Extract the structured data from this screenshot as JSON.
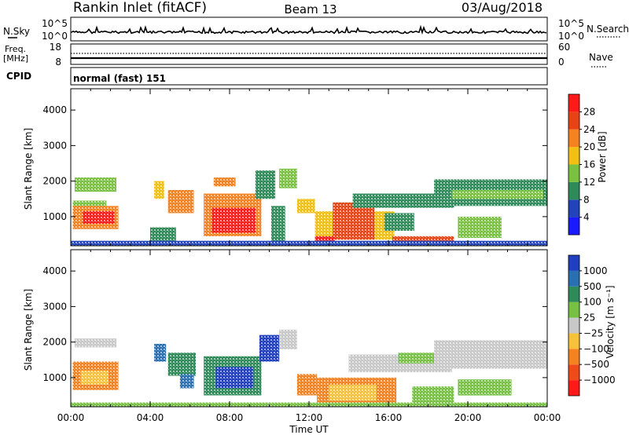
{
  "header": {
    "station": "Rankin Inlet (fitACF)",
    "beam": "Beam 13",
    "date": "03/Aug/2018"
  },
  "summary_panels": {
    "nsky_label": "N.Sky",
    "nsky_ticks": [
      "10^5",
      "10^0"
    ],
    "nsearch_label": "N.Search",
    "nsearch_ticks": [
      "10^5",
      "10^0"
    ],
    "freq_label": "Freq.",
    "freq_unit": "[MHz]",
    "freq_ticks": [
      "18",
      "8"
    ],
    "nave_label": "Nave",
    "nave_ticks": [
      "60",
      "0"
    ],
    "cpid_label": "CPID",
    "cpid_text": "normal (fast) 151"
  },
  "chart_data": [
    {
      "type": "heatmap",
      "name": "power",
      "ylabel": "Slant Range [km]",
      "xlabel": "Time UT",
      "xlim": [
        0,
        24
      ],
      "ylim": [
        180,
        4600
      ],
      "yticks": [
        1000,
        2000,
        3000,
        4000
      ],
      "xticks_labels": [
        "00:00",
        "04:00",
        "08:00",
        "12:00",
        "16:00",
        "20:00",
        "00:00"
      ],
      "colorbar": {
        "label": "Power [dB]",
        "ticks": [
          "4",
          "8",
          "12",
          "16",
          "20",
          "24",
          "28"
        ],
        "colors": [
          "#1a1aff",
          "#2244bb",
          "#2f8a5a",
          "#7ac142",
          "#f2c012",
          "#f58220",
          "#e84315",
          "#ff1a1a"
        ]
      },
      "regions": [
        {
          "t0": 0.2,
          "t1": 2.3,
          "r0": 1700,
          "r1": 2100,
          "level": 3
        },
        {
          "t0": 0.1,
          "t1": 1.8,
          "r0": 1250,
          "r1": 1450,
          "level": 3
        },
        {
          "t0": 0.1,
          "t1": 2.4,
          "r0": 650,
          "r1": 1300,
          "level": 5
        },
        {
          "t0": 0.6,
          "t1": 2.2,
          "r0": 800,
          "r1": 1150,
          "level": 7
        },
        {
          "t0": 4.2,
          "t1": 4.7,
          "r0": 1500,
          "r1": 2000,
          "level": 4
        },
        {
          "t0": 4.9,
          "t1": 6.2,
          "r0": 1100,
          "r1": 1750,
          "level": 5
        },
        {
          "t0": 4.0,
          "t1": 5.3,
          "r0": 300,
          "r1": 700,
          "level": 2
        },
        {
          "t0": 6.7,
          "t1": 9.6,
          "r0": 450,
          "r1": 1650,
          "level": 5
        },
        {
          "t0": 7.1,
          "t1": 9.3,
          "r0": 550,
          "r1": 1250,
          "level": 7
        },
        {
          "t0": 7.2,
          "t1": 8.3,
          "r0": 1850,
          "r1": 2100,
          "level": 5
        },
        {
          "t0": 9.3,
          "t1": 10.3,
          "r0": 1500,
          "r1": 2300,
          "level": 2
        },
        {
          "t0": 10.5,
          "t1": 11.4,
          "r0": 1800,
          "r1": 2350,
          "level": 3
        },
        {
          "t0": 10.1,
          "t1": 10.8,
          "r0": 300,
          "r1": 1300,
          "level": 2
        },
        {
          "t0": 11.4,
          "t1": 12.3,
          "r0": 1100,
          "r1": 1500,
          "level": 4
        },
        {
          "t0": 12.3,
          "t1": 16.3,
          "r0": 350,
          "r1": 1150,
          "level": 4
        },
        {
          "t0": 13.2,
          "t1": 15.3,
          "r0": 350,
          "r1": 1400,
          "level": 6
        },
        {
          "t0": 12.3,
          "t1": 13.3,
          "r0": 250,
          "r1": 450,
          "level": 7
        },
        {
          "t0": 14.2,
          "t1": 19.3,
          "r0": 1250,
          "r1": 1650,
          "level": 2
        },
        {
          "t0": 15.8,
          "t1": 17.3,
          "r0": 600,
          "r1": 1100,
          "level": 2
        },
        {
          "t0": 16.2,
          "t1": 19.3,
          "r0": 200,
          "r1": 450,
          "level": 6
        },
        {
          "t0": 18.3,
          "t1": 24,
          "r0": 1300,
          "r1": 2050,
          "level": 2
        },
        {
          "t0": 19.2,
          "t1": 23.8,
          "r0": 1500,
          "r1": 1750,
          "level": 3
        },
        {
          "t0": 19.5,
          "t1": 21.7,
          "r0": 400,
          "r1": 1000,
          "level": 3
        },
        {
          "t0": 0,
          "t1": 24,
          "r0": 180,
          "r1": 320,
          "level": 1
        }
      ]
    },
    {
      "type": "heatmap",
      "name": "velocity",
      "ylabel": "Slant Range [km]",
      "xlabel": "Time UT",
      "xlim": [
        0,
        24
      ],
      "ylim": [
        180,
        4600
      ],
      "yticks": [
        1000,
        2000,
        3000,
        4000
      ],
      "xticks_labels": [
        "00:00",
        "04:00",
        "08:00",
        "12:00",
        "16:00",
        "20:00",
        "00:00"
      ],
      "colorbar": {
        "label": "Velocity [m s⁻¹]",
        "ticks": [
          "1000",
          "500",
          "100",
          "25",
          "−25",
          "−100",
          "−500",
          "−1000"
        ],
        "colors": [
          "#1f3fbf",
          "#2a6fb0",
          "#2f8a5a",
          "#76c043",
          "#c8c8c8",
          "#f6c23c",
          "#f58220",
          "#ee4a1a",
          "#ff1a1a"
        ]
      },
      "regions": [
        {
          "t0": 0.2,
          "t1": 2.3,
          "r0": 1850,
          "r1": 2100,
          "level": 4
        },
        {
          "t0": 0.1,
          "t1": 2.4,
          "r0": 650,
          "r1": 1450,
          "level": 6
        },
        {
          "t0": 0.5,
          "t1": 1.9,
          "r0": 800,
          "r1": 1200,
          "level": 5
        },
        {
          "t0": 4.2,
          "t1": 4.8,
          "r0": 1450,
          "r1": 1950,
          "level": 1
        },
        {
          "t0": 4.9,
          "t1": 6.3,
          "r0": 1050,
          "r1": 1700,
          "level": 2
        },
        {
          "t0": 5.5,
          "t1": 6.2,
          "r0": 700,
          "r1": 1100,
          "level": 1
        },
        {
          "t0": 6.7,
          "t1": 9.6,
          "r0": 500,
          "r1": 1600,
          "level": 2
        },
        {
          "t0": 7.3,
          "t1": 9.2,
          "r0": 700,
          "r1": 1300,
          "level": 0
        },
        {
          "t0": 9.5,
          "t1": 10.5,
          "r0": 1450,
          "r1": 2200,
          "level": 0
        },
        {
          "t0": 10.5,
          "t1": 11.4,
          "r0": 1800,
          "r1": 2350,
          "level": 4
        },
        {
          "t0": 11.4,
          "t1": 12.4,
          "r0": 500,
          "r1": 1100,
          "level": 6
        },
        {
          "t0": 12.4,
          "t1": 16.4,
          "r0": 300,
          "r1": 1000,
          "level": 6
        },
        {
          "t0": 13.0,
          "t1": 15.4,
          "r0": 350,
          "r1": 800,
          "level": 5
        },
        {
          "t0": 14.0,
          "t1": 19.2,
          "r0": 1150,
          "r1": 1650,
          "level": 4
        },
        {
          "t0": 16.5,
          "t1": 18.3,
          "r0": 1400,
          "r1": 1700,
          "level": 3
        },
        {
          "t0": 17.2,
          "t1": 19.3,
          "r0": 300,
          "r1": 750,
          "level": 3
        },
        {
          "t0": 18.3,
          "t1": 24,
          "r0": 1250,
          "r1": 2050,
          "level": 4
        },
        {
          "t0": 19.5,
          "t1": 22.2,
          "r0": 500,
          "r1": 950,
          "level": 3
        },
        {
          "t0": 0,
          "t1": 24,
          "r0": 180,
          "r1": 300,
          "level": 3
        }
      ]
    }
  ]
}
